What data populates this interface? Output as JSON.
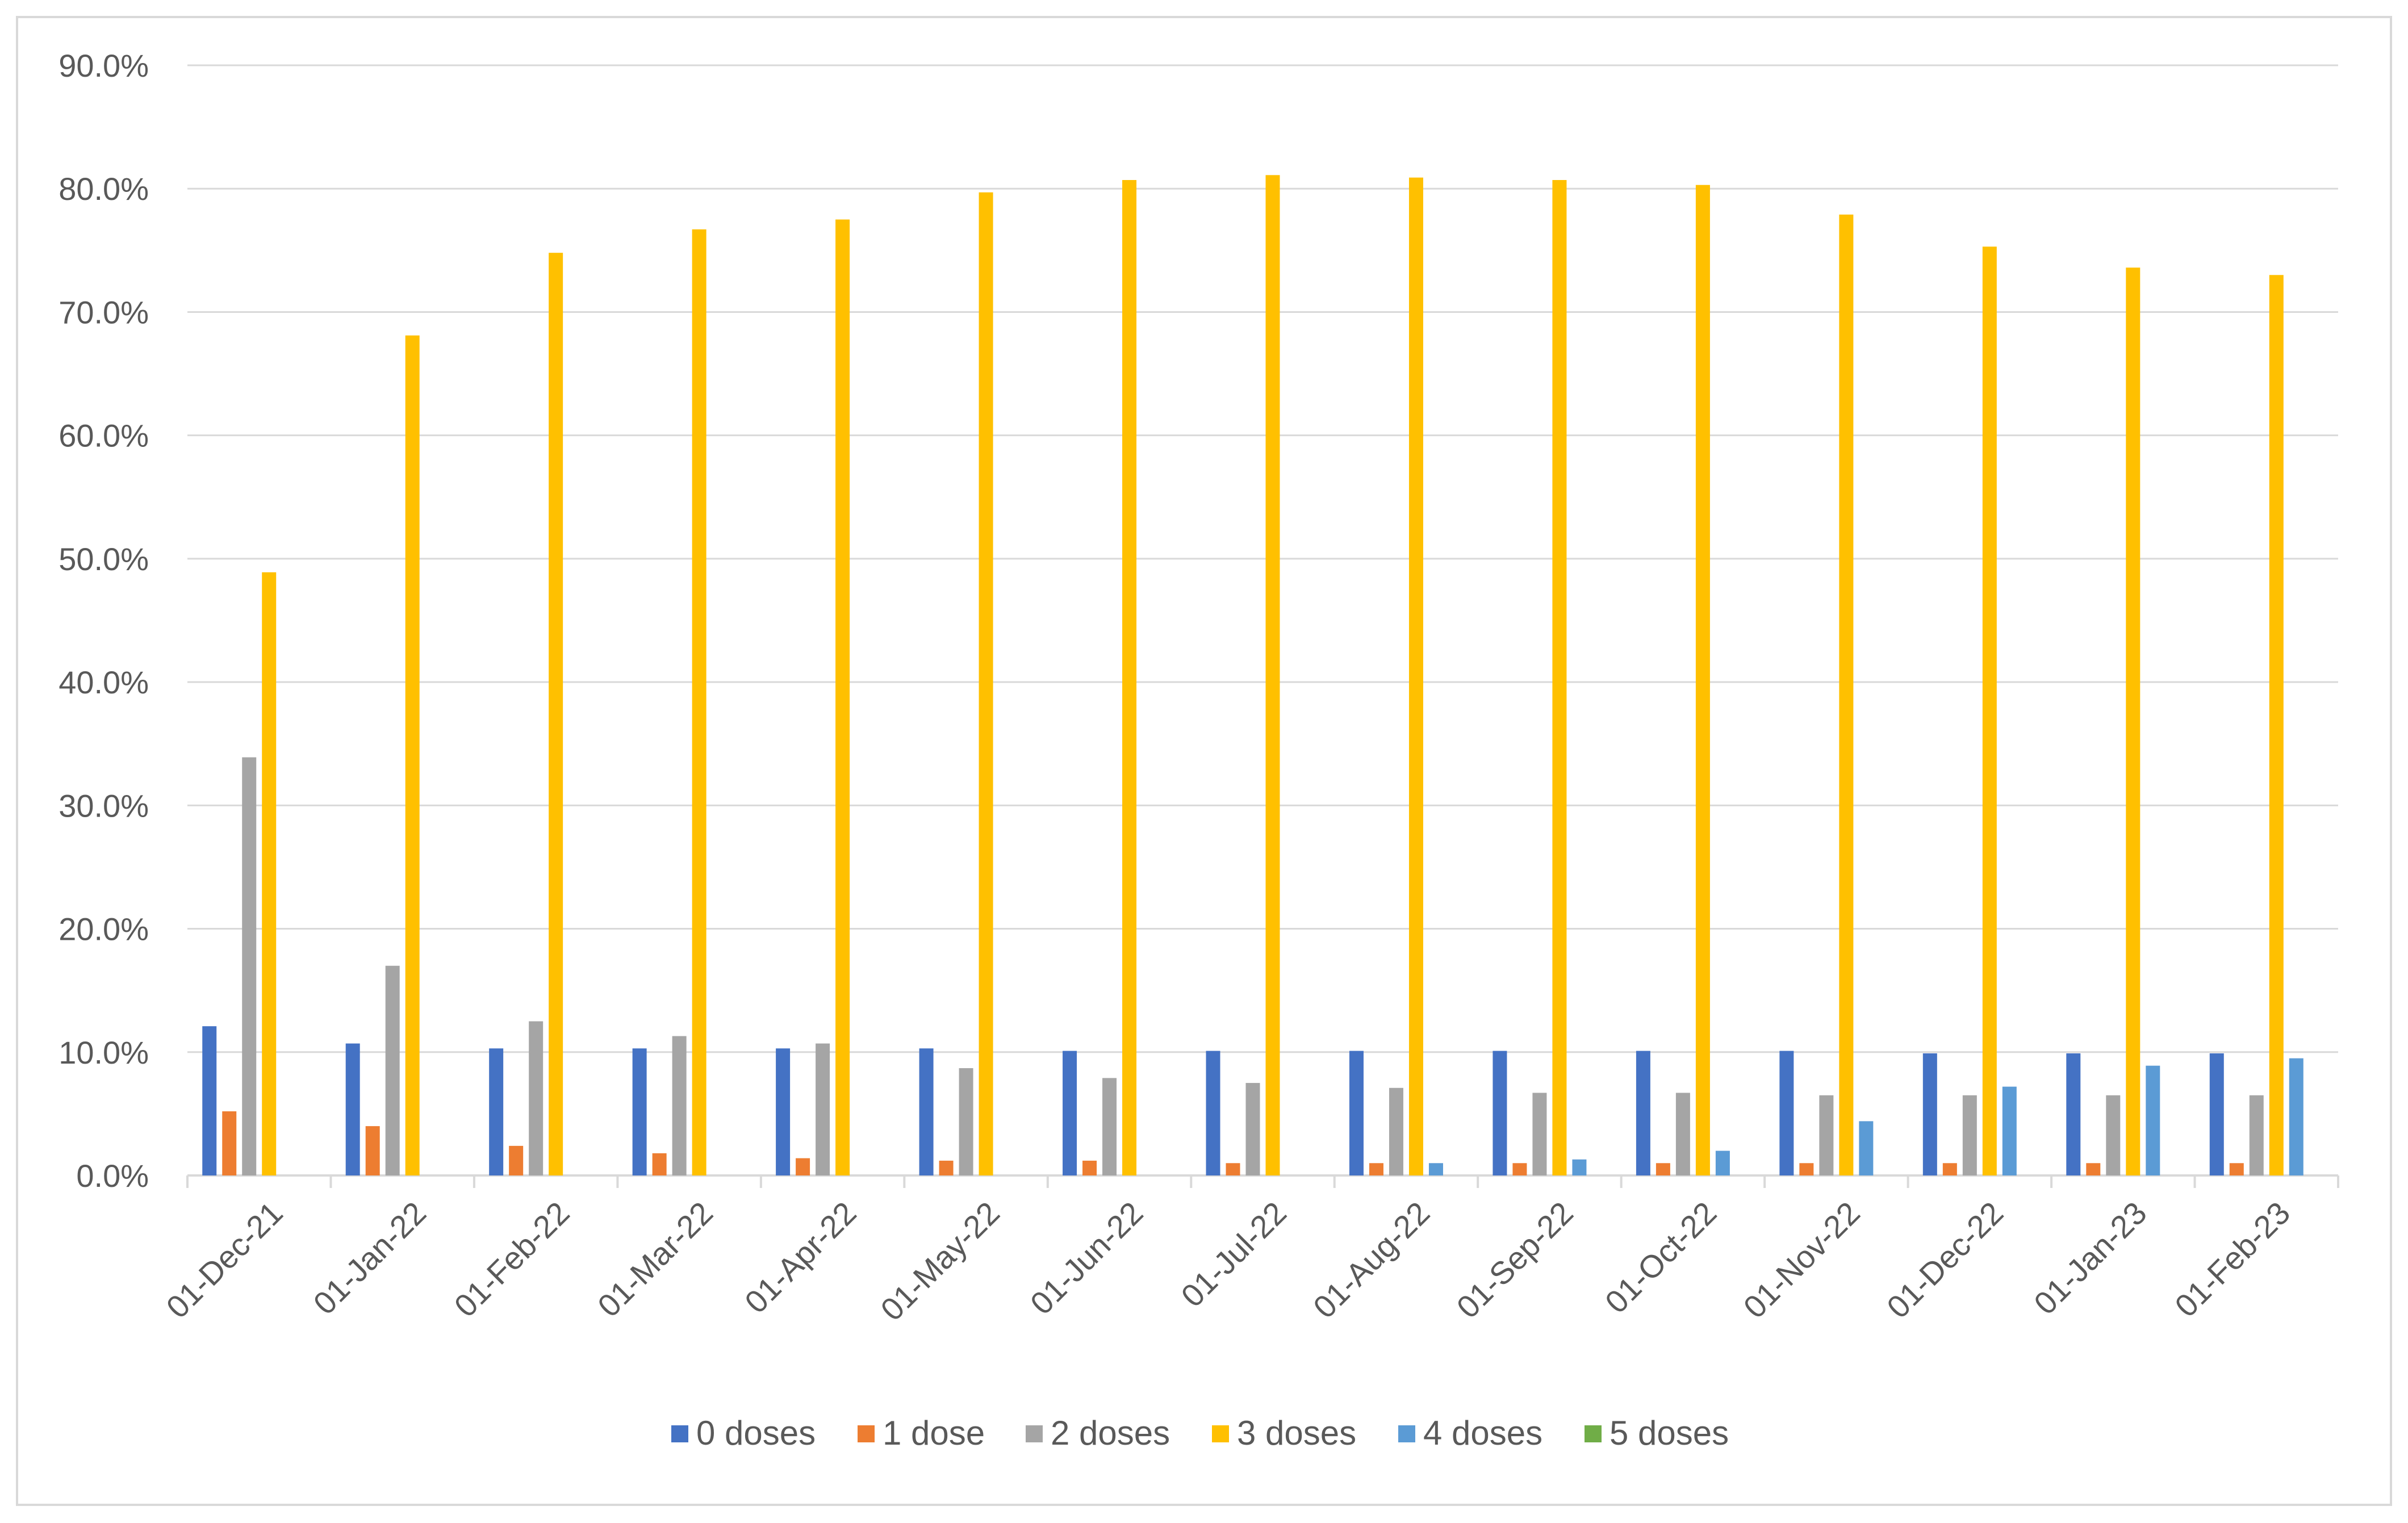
{
  "chart_data": {
    "type": "bar",
    "title": "",
    "xlabel": "",
    "ylabel": "",
    "ylim": [
      0,
      90
    ],
    "y_ticks": [
      "0.0%",
      "10.0%",
      "20.0%",
      "30.0%",
      "40.0%",
      "50.0%",
      "60.0%",
      "70.0%",
      "80.0%",
      "90.0%"
    ],
    "grid": "horizontal",
    "legend_position": "bottom",
    "categories": [
      "01-Dec-21",
      "01-Jan-22",
      "01-Feb-22",
      "01-Mar-22",
      "01-Apr-22",
      "01-May-22",
      "01-Jun-22",
      "01-Jul-22",
      "01-Aug-22",
      "01-Sep-22",
      "01-Oct-22",
      "01-Nov-22",
      "01-Dec-22",
      "01-Jan-23",
      "01-Feb-23"
    ],
    "series": [
      {
        "name": "0 doses",
        "color": "#4472C4",
        "values": [
          12.1,
          10.7,
          10.3,
          10.3,
          10.3,
          10.3,
          10.1,
          10.1,
          10.1,
          10.1,
          10.1,
          10.1,
          9.9,
          9.9,
          9.9
        ]
      },
      {
        "name": "1 dose",
        "color": "#ED7D31",
        "values": [
          5.2,
          4.0,
          2.4,
          1.8,
          1.4,
          1.2,
          1.2,
          1.0,
          1.0,
          1.0,
          1.0,
          1.0,
          1.0,
          1.0,
          1.0
        ]
      },
      {
        "name": "2 doses",
        "color": "#A5A5A5",
        "values": [
          33.9,
          17.0,
          12.5,
          11.3,
          10.7,
          8.7,
          7.9,
          7.5,
          7.1,
          6.7,
          6.7,
          6.5,
          6.5,
          6.5,
          6.5
        ]
      },
      {
        "name": "3 doses",
        "color": "#FFC000",
        "values": [
          48.9,
          68.1,
          74.8,
          76.7,
          77.5,
          79.7,
          80.7,
          81.1,
          80.9,
          80.7,
          80.3,
          77.9,
          75.3,
          73.6,
          73.0
        ]
      },
      {
        "name": "4 doses",
        "color": "#5B9BD5",
        "values": [
          0,
          0,
          0,
          0,
          0,
          0,
          0,
          0,
          1.0,
          1.3,
          2.0,
          4.4,
          7.2,
          8.9,
          9.5
        ]
      },
      {
        "name": "5 doses",
        "color": "#70AD47",
        "values": [
          0,
          0,
          0,
          0,
          0,
          0,
          0,
          0,
          0,
          0,
          0,
          0,
          0,
          0,
          0
        ]
      }
    ]
  }
}
